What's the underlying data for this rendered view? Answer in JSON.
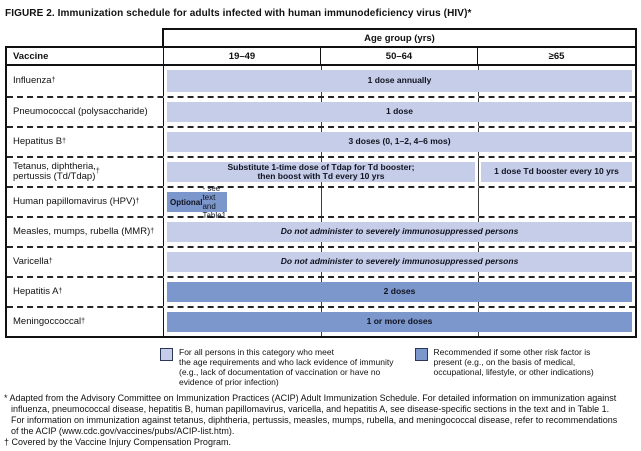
{
  "figure": {
    "title": "FIGURE 2. Immunization schedule for adults infected with human immunodeficiency virus (HIV)*"
  },
  "table": {
    "age_group_header": "Age group (yrs)",
    "vaccine_header": "Vaccine",
    "columns": [
      "19–49",
      "50–64",
      "≥65"
    ],
    "rows": [
      {
        "label": "Influenza",
        "sup": "†",
        "bar": "1 dose annually"
      },
      {
        "label": "Pneumococcal (polysaccharide)",
        "sup": "",
        "bar": "1 dose"
      },
      {
        "label": "Hepatitus B",
        "sup": "†",
        "bar": "3 doses (0, 1–2, 4–6 mos)"
      },
      {
        "label": "Tetanus, diphtheria,\npertussis (Td/Tdap)",
        "sup": "†",
        "bar_left": "Substitute 1-time dose of Tdap for Td booster;\nthen boost with Td every 10 yrs",
        "bar_right": "1 dose Td booster every 10 yrs"
      },
      {
        "label": "Human papillomavirus (HPV)",
        "sup": "†",
        "bar_bold": "Optional",
        "bar_rest": " - see\ntext and Table1"
      },
      {
        "label": "Measles, mumps, rubella (MMR)",
        "sup": "†",
        "bar": "Do not administer to severely immunosuppressed persons"
      },
      {
        "label": "Varicella",
        "sup": "†",
        "bar": "Do not administer to severely immunosuppressed persons"
      },
      {
        "label": "Hepatitis A",
        "sup": "†",
        "bar": "2 doses"
      },
      {
        "label": "Meningoccoccal",
        "sup": "†",
        "bar": "1 or more doses"
      }
    ]
  },
  "legend": {
    "light": "For all persons in this category who meet\nthe age requirements and who lack evidence of immunity\n(e.g., lack of documentation of vaccination or have no\nevidence of prior infection)",
    "dark": "Recommended if some other risk factor is\npresent (e.g., on the basis of medical,\noccupational, lifestyle, or other indications)"
  },
  "footnotes": {
    "asterisk": "* Adapted from the Advisory Committee on Immunization Practices (ACIP) Adult Immunization Schedule. For detailed information on immunization against\ninfluenza, pneumococcal disease, hepatitis B, human papillomavirus, varicella, and hepatitis A, see disease-specific sections in the text and in Table 1.\nFor information on immunization against tetanus, diphtheria, pertussis, measles, mumps, rubella, and meningococcal disease, refer to recommendations\nof the ACIP (www.cdc.gov/vaccines/pubs/ACIP-list.htm).",
    "dagger": "† Covered by the Vaccine Injury Compensation Program."
  },
  "colors": {
    "light_bar": "#c5cde8",
    "dark_bar": "#7c97cb",
    "border": "#111111"
  }
}
